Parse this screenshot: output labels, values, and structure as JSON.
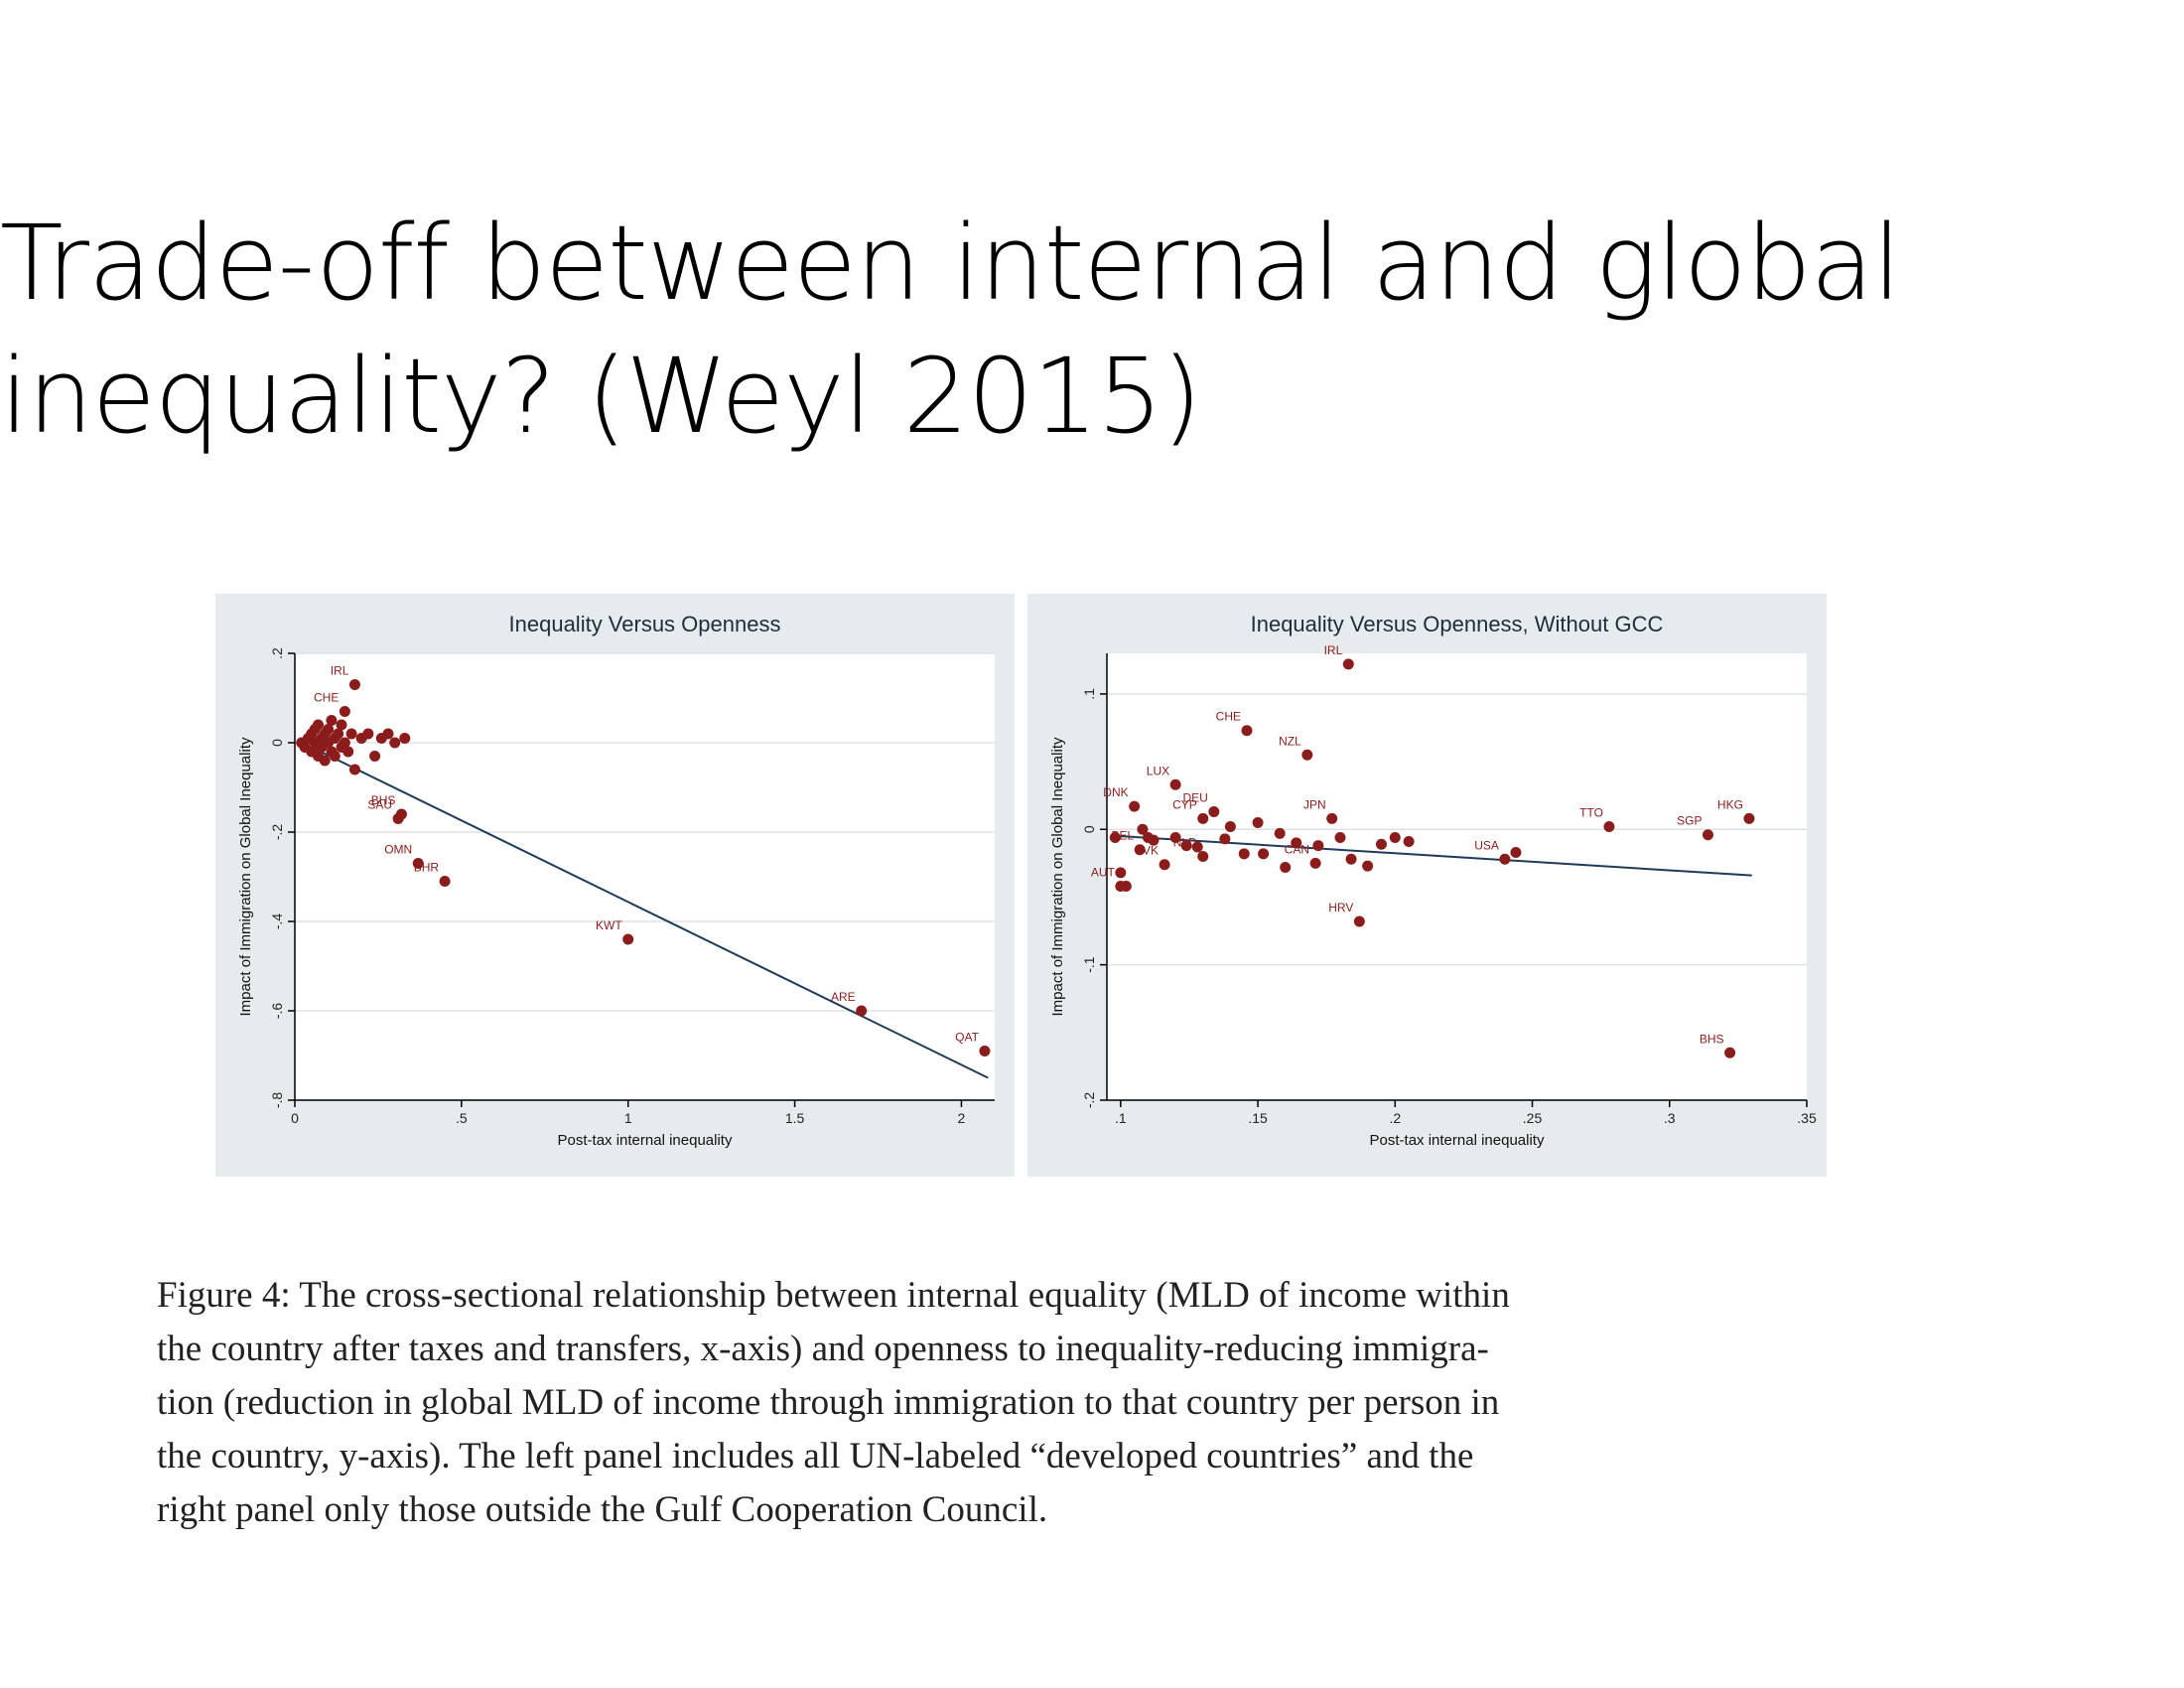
{
  "slide": {
    "title_line1": "Trade-off between internal and global",
    "title_line2": "inequality? (Weyl 2015)"
  },
  "caption": {
    "lines": [
      "Figure 4: The cross-sectional relationship between internal equality (MLD of income within",
      "the country after taxes and transfers, x-axis) and openness to inequality-reducing immigra-",
      "tion (reduction in global MLD of income through immigration to that country per person in",
      "the country, y-axis).  The left panel includes all UN-labeled “developed countries” and the",
      "right panel only those outside the Gulf Cooperation Council."
    ]
  },
  "colors": {
    "panel_bg": "#e6ebee",
    "plot_bg": "#ffffff",
    "point": "#8b1c1c",
    "label": "#8b1c1c",
    "fit_line": "#1f3b5a",
    "grid": "#dde3e7"
  },
  "chart_data": [
    {
      "type": "scatter",
      "title": "Inequality Versus Openness",
      "xlabel": "Post-tax internal inequality",
      "ylabel": "Impact of Immigration on Global Inequality",
      "xlim": [
        0,
        2.1
      ],
      "ylim": [
        -0.8,
        0.2
      ],
      "xticks": [
        0,
        0.5,
        1,
        1.5,
        2
      ],
      "xtick_labels": [
        "0",
        ".5",
        "1",
        "1.5",
        "2"
      ],
      "yticks": [
        0.2,
        0,
        -0.2,
        -0.4,
        -0.6,
        -0.8
      ],
      "ytick_labels": [
        ".2",
        "0",
        "-.2",
        "-.4",
        "-.6",
        "-.8"
      ],
      "grid": true,
      "fit_line": {
        "x": [
          0.05,
          2.08
        ],
        "y": [
          -0.01,
          -0.75
        ]
      },
      "labeled_points": [
        {
          "label": "IRL",
          "x": 0.18,
          "y": 0.13
        },
        {
          "label": "CHE",
          "x": 0.15,
          "y": 0.07
        },
        {
          "label": "BHS",
          "x": 0.32,
          "y": -0.16
        },
        {
          "label": "SAU",
          "x": 0.31,
          "y": -0.17
        },
        {
          "label": "OMN",
          "x": 0.37,
          "y": -0.27
        },
        {
          "label": "BHR",
          "x": 0.45,
          "y": -0.31
        },
        {
          "label": "KWT",
          "x": 1.0,
          "y": -0.44
        },
        {
          "label": "ARE",
          "x": 1.7,
          "y": -0.6
        },
        {
          "label": "QAT",
          "x": 2.07,
          "y": -0.69
        }
      ],
      "unlabeled_points": [
        {
          "x": 0.02,
          "y": 0.0
        },
        {
          "x": 0.03,
          "y": -0.01
        },
        {
          "x": 0.04,
          "y": 0.01
        },
        {
          "x": 0.05,
          "y": 0.02
        },
        {
          "x": 0.05,
          "y": -0.02
        },
        {
          "x": 0.06,
          "y": 0.03
        },
        {
          "x": 0.06,
          "y": 0.0
        },
        {
          "x": 0.07,
          "y": -0.03
        },
        {
          "x": 0.07,
          "y": 0.04
        },
        {
          "x": 0.08,
          "y": 0.01
        },
        {
          "x": 0.08,
          "y": -0.01
        },
        {
          "x": 0.09,
          "y": 0.02
        },
        {
          "x": 0.09,
          "y": -0.04
        },
        {
          "x": 0.1,
          "y": 0.0
        },
        {
          "x": 0.1,
          "y": 0.03
        },
        {
          "x": 0.11,
          "y": -0.02
        },
        {
          "x": 0.11,
          "y": 0.05
        },
        {
          "x": 0.12,
          "y": 0.01
        },
        {
          "x": 0.12,
          "y": -0.03
        },
        {
          "x": 0.13,
          "y": 0.02
        },
        {
          "x": 0.14,
          "y": -0.01
        },
        {
          "x": 0.14,
          "y": 0.04
        },
        {
          "x": 0.15,
          "y": 0.0
        },
        {
          "x": 0.16,
          "y": -0.02
        },
        {
          "x": 0.17,
          "y": 0.02
        },
        {
          "x": 0.18,
          "y": -0.06
        },
        {
          "x": 0.2,
          "y": 0.01
        },
        {
          "x": 0.22,
          "y": 0.02
        },
        {
          "x": 0.24,
          "y": -0.03
        },
        {
          "x": 0.26,
          "y": 0.01
        },
        {
          "x": 0.28,
          "y": 0.02
        },
        {
          "x": 0.3,
          "y": 0.0
        },
        {
          "x": 0.33,
          "y": 0.01
        }
      ]
    },
    {
      "type": "scatter",
      "title": "Inequality Versus Openness, Without GCC",
      "xlabel": "Post-tax internal inequality",
      "ylabel": "Impact of Immigration on Global Inequality",
      "xlim": [
        0.095,
        0.35
      ],
      "ylim": [
        -0.2,
        0.13
      ],
      "xticks": [
        0.1,
        0.15,
        0.2,
        0.25,
        0.3,
        0.35
      ],
      "xtick_labels": [
        ".1",
        ".15",
        ".2",
        ".25",
        ".3",
        ".35"
      ],
      "yticks": [
        0.1,
        0,
        -0.1,
        -0.2
      ],
      "ytick_labels": [
        ".1",
        "0",
        "-.1",
        "-.2"
      ],
      "grid": true,
      "fit_line": {
        "x": [
          0.1,
          0.33
        ],
        "y": [
          -0.005,
          -0.034
        ]
      },
      "labeled_points": [
        {
          "label": "IRL",
          "x": 0.183,
          "y": 0.122
        },
        {
          "label": "CHE",
          "x": 0.146,
          "y": 0.073
        },
        {
          "label": "NZL",
          "x": 0.168,
          "y": 0.055
        },
        {
          "label": "LUX",
          "x": 0.12,
          "y": 0.033
        },
        {
          "label": "DNK",
          "x": 0.105,
          "y": 0.017
        },
        {
          "label": "DEU",
          "x": 0.134,
          "y": 0.013
        },
        {
          "label": "CYP",
          "x": 0.13,
          "y": 0.008
        },
        {
          "label": "JPN",
          "x": 0.177,
          "y": 0.008
        },
        {
          "label": "TTO",
          "x": 0.278,
          "y": 0.002
        },
        {
          "label": "HKG",
          "x": 0.329,
          "y": 0.008
        },
        {
          "label": "SGP",
          "x": 0.314,
          "y": -0.004
        },
        {
          "label": "BEL",
          "x": 0.107,
          "y": -0.015
        },
        {
          "label": "SVK",
          "x": 0.116,
          "y": -0.026
        },
        {
          "label": "NLD",
          "x": 0.13,
          "y": -0.02
        },
        {
          "label": "CAN",
          "x": 0.171,
          "y": -0.025
        },
        {
          "label": "AUT",
          "x": 0.1,
          "y": -0.042
        },
        {
          "label": "USA",
          "x": 0.24,
          "y": -0.022
        },
        {
          "label": "HRV",
          "x": 0.187,
          "y": -0.068
        },
        {
          "label": "BHS",
          "x": 0.322,
          "y": -0.165
        }
      ],
      "unlabeled_points": [
        {
          "x": 0.098,
          "y": -0.006
        },
        {
          "x": 0.1,
          "y": -0.032
        },
        {
          "x": 0.102,
          "y": -0.042
        },
        {
          "x": 0.108,
          "y": 0.0
        },
        {
          "x": 0.11,
          "y": -0.006
        },
        {
          "x": 0.112,
          "y": -0.008
        },
        {
          "x": 0.12,
          "y": -0.006
        },
        {
          "x": 0.124,
          "y": -0.012
        },
        {
          "x": 0.128,
          "y": -0.013
        },
        {
          "x": 0.138,
          "y": -0.007
        },
        {
          "x": 0.14,
          "y": 0.002
        },
        {
          "x": 0.145,
          "y": -0.018
        },
        {
          "x": 0.15,
          "y": 0.005
        },
        {
          "x": 0.152,
          "y": -0.018
        },
        {
          "x": 0.158,
          "y": -0.003
        },
        {
          "x": 0.16,
          "y": -0.028
        },
        {
          "x": 0.164,
          "y": -0.01
        },
        {
          "x": 0.172,
          "y": -0.012
        },
        {
          "x": 0.18,
          "y": -0.006
        },
        {
          "x": 0.184,
          "y": -0.022
        },
        {
          "x": 0.19,
          "y": -0.027
        },
        {
          "x": 0.195,
          "y": -0.011
        },
        {
          "x": 0.2,
          "y": -0.006
        },
        {
          "x": 0.205,
          "y": -0.009
        },
        {
          "x": 0.244,
          "y": -0.017
        }
      ]
    }
  ]
}
